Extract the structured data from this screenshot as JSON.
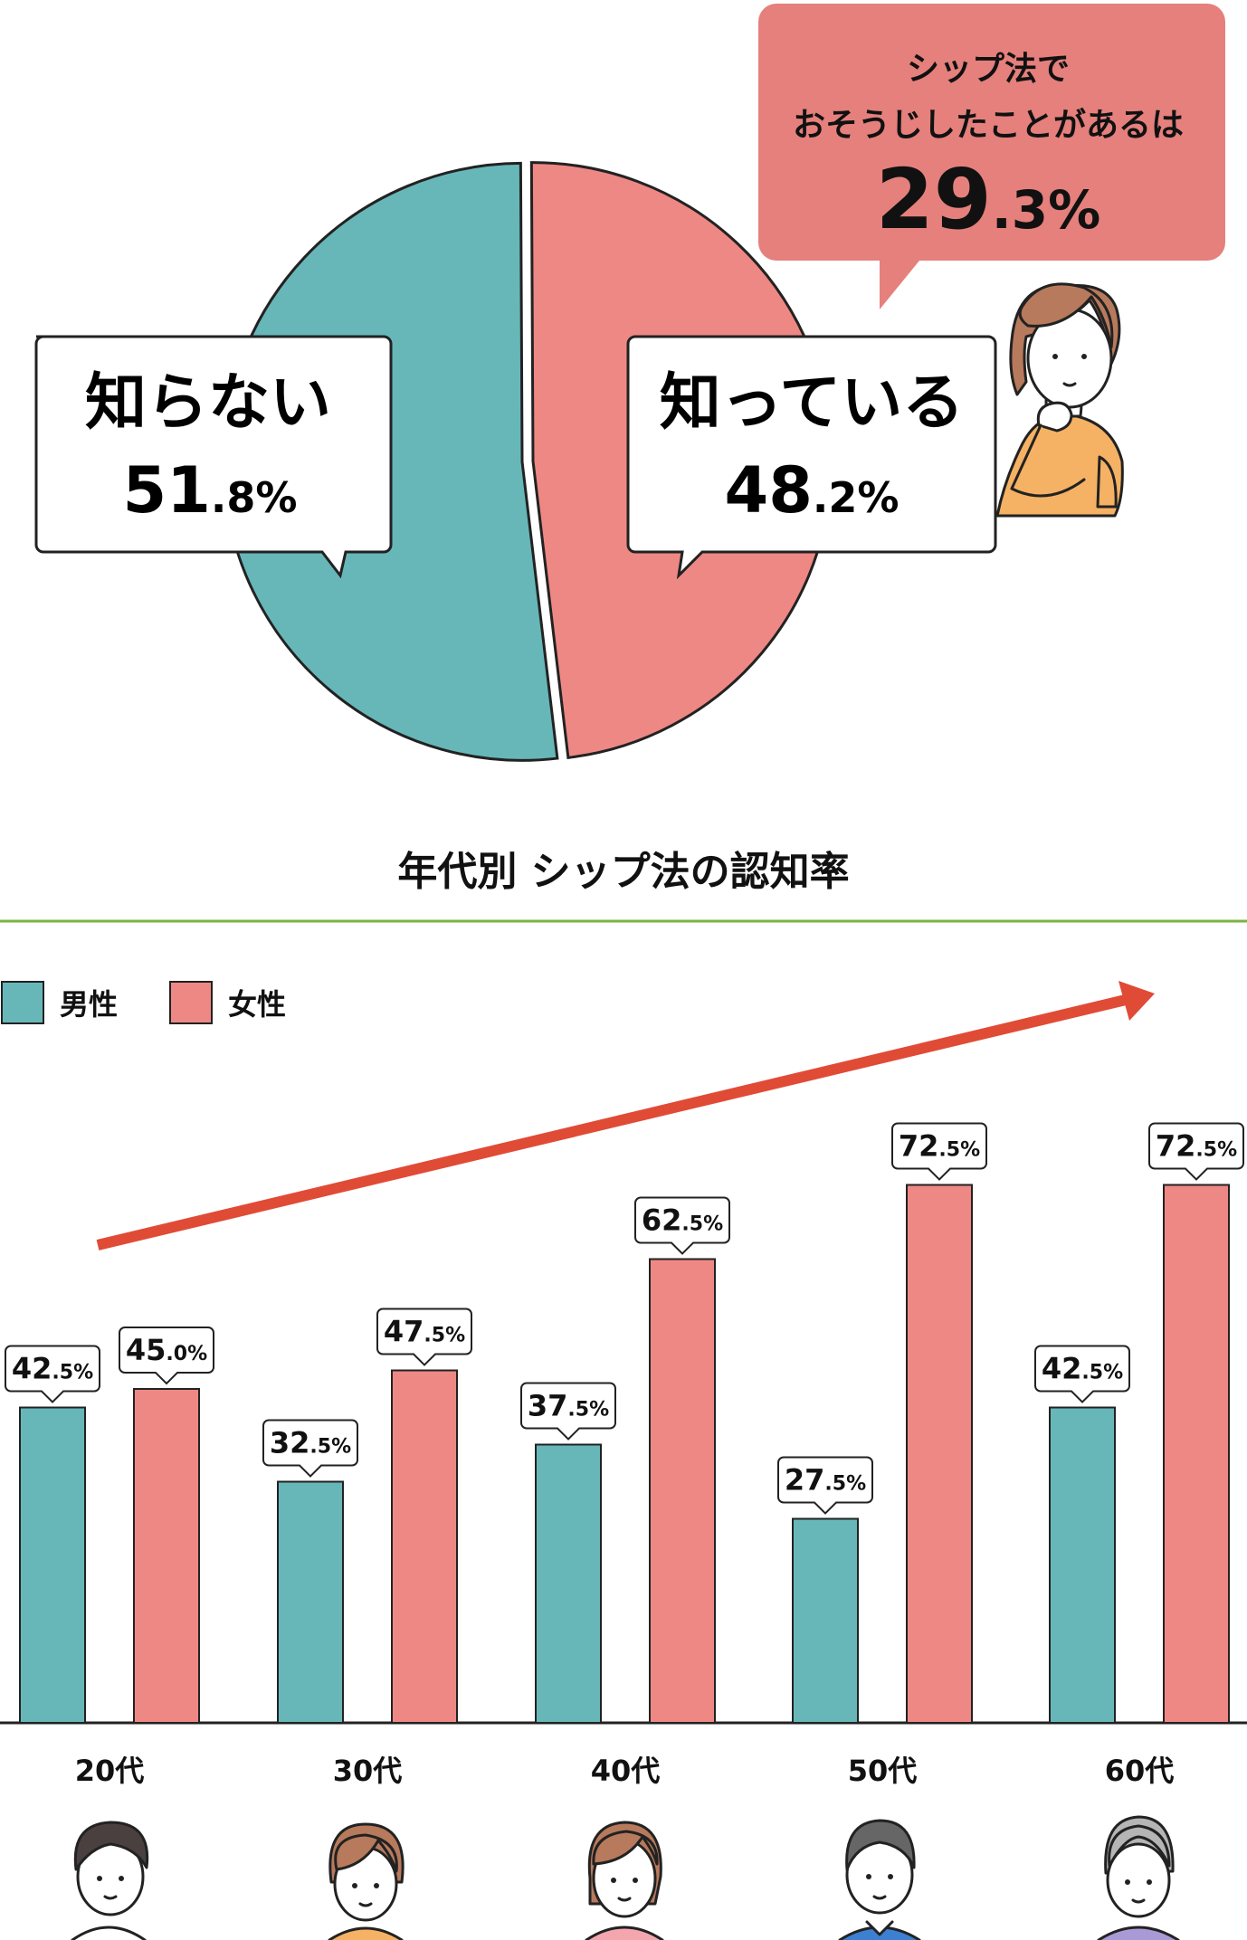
{
  "pie": {
    "callout": {
      "line1": "シップ法で",
      "line2": "おそうじしたことがあるは",
      "value_big": "29",
      "value_small": ".3%"
    },
    "unknown": {
      "label": "知らない",
      "value_big": "51",
      "value_small": ".8%"
    },
    "known": {
      "label": "知っている",
      "value_big": "48",
      "value_small": ".2%"
    }
  },
  "bar_section": {
    "title": "年代別 シップ法の認知率",
    "legend": {
      "male": "男性",
      "female": "女性"
    }
  },
  "colors": {
    "teal": "#67b7b9",
    "pink": "#ee8884",
    "callout": "#e5807c",
    "arrow": "#e04b36",
    "green_rule": "#7cb342",
    "person_orange": "#f5b264",
    "hair_brown": "#b87a5c"
  },
  "chart_data": [
    {
      "type": "pie",
      "title": "",
      "slices": [
        {
          "label": "知っている",
          "value": 48.2
        },
        {
          "label": "知らない",
          "value": 51.8
        }
      ],
      "annotation": "シップ法で おそうじしたことがあるは 29.3%"
    },
    {
      "type": "bar",
      "title": "年代別 シップ法の認知率",
      "categories": [
        "20代",
        "30代",
        "40代",
        "50代",
        "60代"
      ],
      "series": [
        {
          "name": "男性",
          "values": [
            42.5,
            32.5,
            37.5,
            27.5,
            42.5
          ],
          "labels": [
            [
              "42",
              ".5%"
            ],
            [
              "32",
              ".5%"
            ],
            [
              "37",
              ".5%"
            ],
            [
              "27",
              ".5%"
            ],
            [
              "42",
              ".5%"
            ]
          ]
        },
        {
          "name": "女性",
          "values": [
            45.0,
            47.5,
            62.5,
            72.5,
            72.5
          ],
          "labels": [
            [
              "45",
              ".0%"
            ],
            [
              "47",
              ".5%"
            ],
            [
              "62",
              ".5%"
            ],
            [
              "72",
              ".5%"
            ],
            [
              "72",
              ".5%"
            ]
          ]
        }
      ],
      "ylim": [
        0,
        100
      ],
      "legend": "top-left",
      "grid": false
    }
  ]
}
